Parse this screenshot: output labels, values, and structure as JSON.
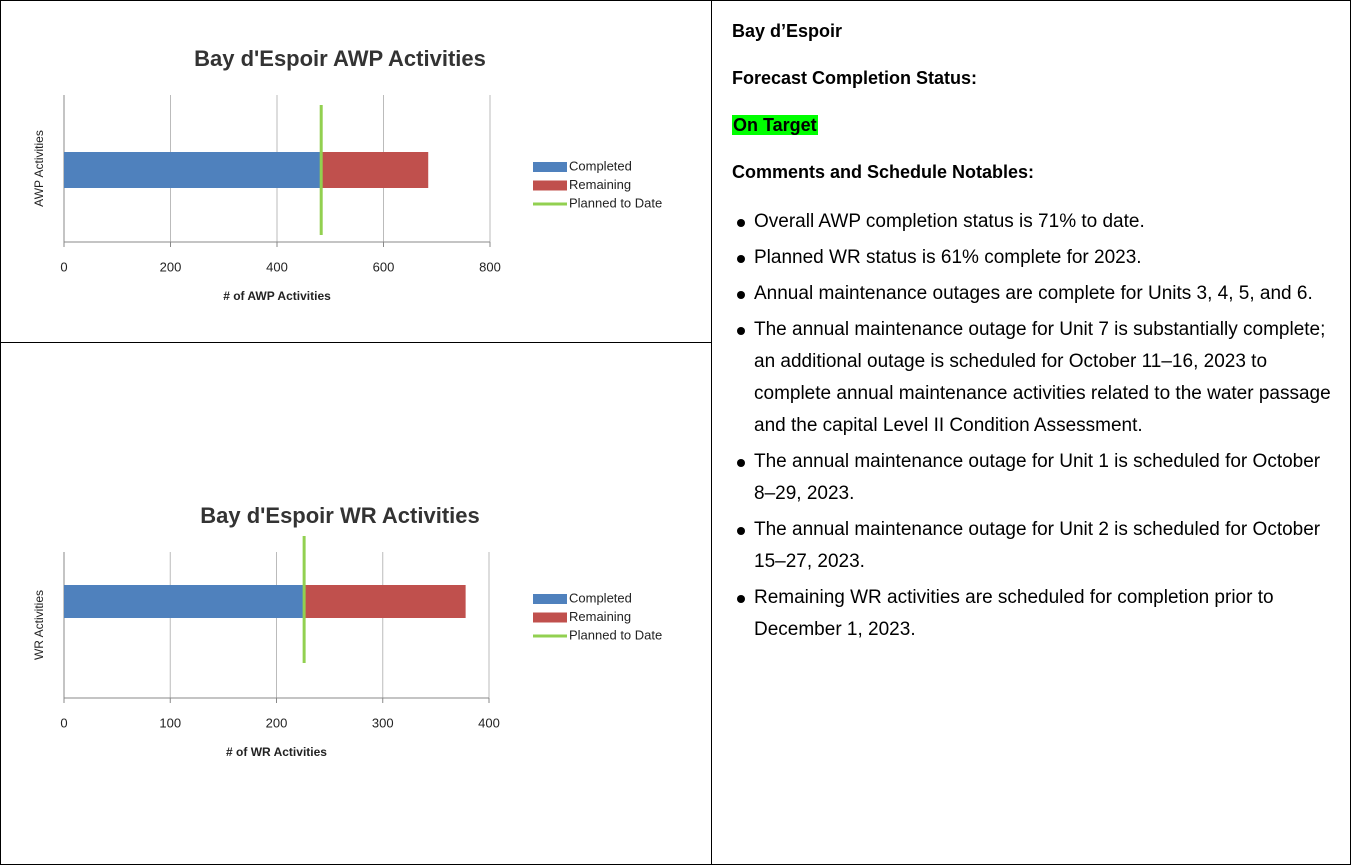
{
  "chart_data": [
    {
      "type": "bar",
      "orientation": "horizontal",
      "stacked": true,
      "title": "Bay d'Espoir AWP Activities",
      "xlabel": "# of AWP Activities",
      "ylabel": "AWP Activities",
      "categories": [
        null
      ],
      "series": [
        {
          "name": "Completed",
          "color": "#4f81bd",
          "values": [
            481
          ]
        },
        {
          "name": "Remaining",
          "color": "#c0504d",
          "values": [
            203
          ]
        },
        {
          "name": "Planned to Date",
          "color": "#92d050",
          "type": "line",
          "values": [
            483
          ]
        }
      ],
      "xlim": [
        0,
        800
      ],
      "xticks": [
        0,
        200,
        400,
        600,
        800
      ],
      "grid": true,
      "legend": "right"
    },
    {
      "type": "bar",
      "orientation": "horizontal",
      "stacked": true,
      "title": "Bay d'Espoir WR Activities",
      "xlabel": "# of WR Activities",
      "ylabel": "WR Activities",
      "categories": [
        null
      ],
      "series": [
        {
          "name": "Completed",
          "color": "#4f81bd",
          "values": [
            227
          ]
        },
        {
          "name": "Remaining",
          "color": "#c0504d",
          "values": [
            151
          ]
        },
        {
          "name": "Planned to Date",
          "color": "#92d050",
          "type": "line",
          "values": [
            226
          ]
        }
      ],
      "xlim": [
        0,
        400
      ],
      "xticks": [
        0,
        100,
        200,
        300,
        400
      ],
      "grid": true,
      "legend": "right"
    }
  ],
  "panel": {
    "heading": "Bay d’Espoir",
    "status_label": "Forecast Completion Status:",
    "status": "On Target",
    "comments_heading": "Comments and Schedule Notables:",
    "bullets": [
      "Overall AWP completion status is 71% to date.",
      "Planned WR status is 61% complete for 2023.",
      "Annual maintenance outages are complete for Units 3, 4, 5, and 6.",
      "The annual maintenance outage for Unit 7 is substantially complete; an additional outage is scheduled for October 11–16, 2023 to complete annual maintenance activities related to the water passage and the capital Level II Condition Assessment.",
      "The annual maintenance outage for Unit 1 is scheduled for October 8–29, 2023.",
      "The annual maintenance outage for Unit 2 is scheduled for October 15–27, 2023.",
      "Remaining WR activities are scheduled for completion prior to December 1, 2023."
    ]
  }
}
